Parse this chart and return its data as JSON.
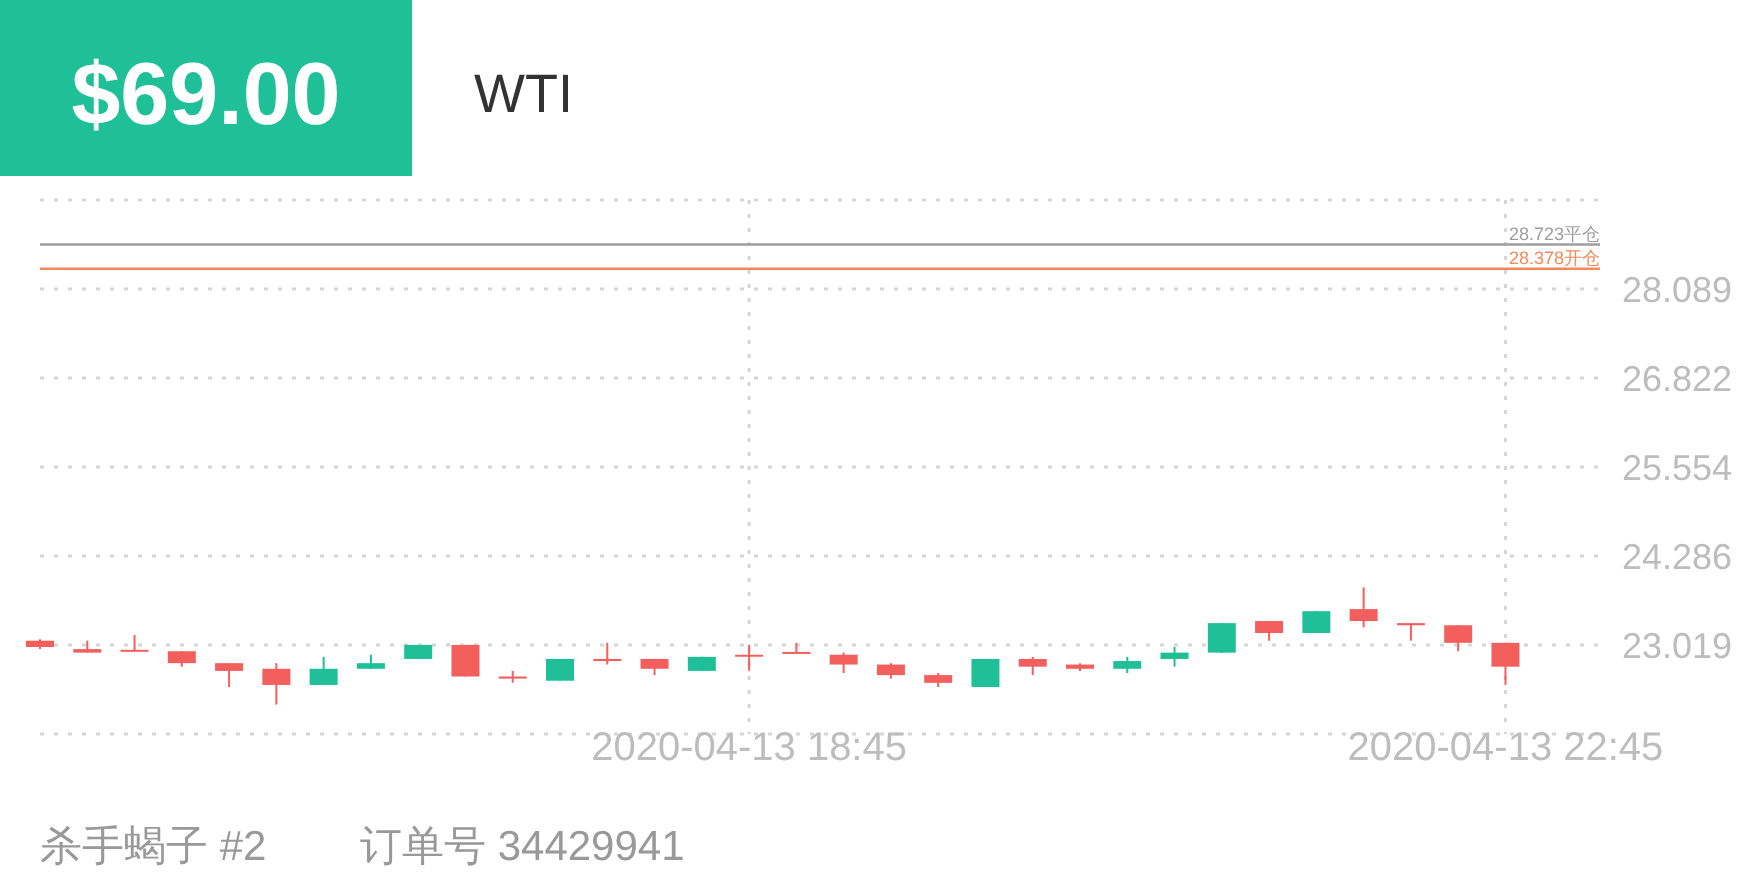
{
  "chart_data": {
    "type": "candlestick",
    "title": "$69.00",
    "subtitle": "WTI",
    "x": [
      "2020-04-13T15:00",
      "2020-04-13T15:15",
      "2020-04-13T15:30",
      "2020-04-13T15:45",
      "2020-04-13T16:00",
      "2020-04-13T16:15",
      "2020-04-13T16:30",
      "2020-04-13T16:45",
      "2020-04-13T17:00",
      "2020-04-13T17:15",
      "2020-04-13T17:30",
      "2020-04-13T17:45",
      "2020-04-13T18:00",
      "2020-04-13T18:15",
      "2020-04-13T18:30",
      "2020-04-13T18:45",
      "2020-04-13T19:00",
      "2020-04-13T19:15",
      "2020-04-13T19:30",
      "2020-04-13T19:45",
      "2020-04-13T20:00",
      "2020-04-13T20:15",
      "2020-04-13T20:30",
      "2020-04-13T20:45",
      "2020-04-13T21:00",
      "2020-04-13T21:15",
      "2020-04-13T21:30",
      "2020-04-13T21:45",
      "2020-04-13T22:00",
      "2020-04-13T22:15",
      "2020-04-13T22:30",
      "2020-04-13T22:45"
    ],
    "ohlc": [
      [
        23.08,
        23.1,
        22.96,
        22.99
      ],
      [
        22.96,
        23.08,
        22.91,
        22.91
      ],
      [
        22.95,
        23.16,
        22.93,
        22.93
      ],
      [
        22.93,
        22.93,
        22.71,
        22.76
      ],
      [
        22.76,
        22.76,
        22.42,
        22.65
      ],
      [
        22.68,
        22.76,
        22.17,
        22.45
      ],
      [
        22.45,
        22.85,
        22.45,
        22.68
      ],
      [
        22.68,
        22.88,
        22.68,
        22.76
      ],
      [
        22.82,
        23.02,
        22.82,
        23.02
      ],
      [
        23.02,
        23.02,
        22.57,
        22.57
      ],
      [
        22.57,
        22.65,
        22.48,
        22.54
      ],
      [
        22.51,
        22.82,
        22.51,
        22.82
      ],
      [
        22.82,
        23.05,
        22.74,
        22.79
      ],
      [
        22.82,
        22.82,
        22.59,
        22.68
      ],
      [
        22.65,
        22.85,
        22.65,
        22.85
      ],
      [
        22.88,
        23.02,
        22.65,
        22.86
      ],
      [
        22.92,
        23.05,
        22.91,
        22.91
      ],
      [
        22.88,
        22.91,
        22.62,
        22.74
      ],
      [
        22.74,
        22.76,
        22.54,
        22.59
      ],
      [
        22.59,
        22.62,
        22.42,
        22.48
      ],
      [
        22.42,
        22.82,
        22.42,
        22.82
      ],
      [
        22.82,
        22.85,
        22.59,
        22.71
      ],
      [
        22.74,
        22.76,
        22.65,
        22.68
      ],
      [
        22.68,
        22.85,
        22.62,
        22.79
      ],
      [
        22.82,
        22.99,
        22.71,
        22.91
      ],
      [
        22.91,
        23.33,
        22.91,
        23.33
      ],
      [
        23.36,
        23.36,
        23.08,
        23.19
      ],
      [
        23.19,
        23.5,
        23.19,
        23.5
      ],
      [
        23.53,
        23.84,
        23.27,
        23.36
      ],
      [
        23.33,
        23.33,
        23.08,
        23.3
      ],
      [
        23.3,
        23.3,
        22.93,
        23.05
      ],
      [
        23.05,
        23.05,
        22.45,
        22.71
      ]
    ],
    "colors": [
      "#f25f5c",
      "#f25f5c",
      "#f25f5c",
      "#f25f5c",
      "#f25f5c",
      "#f25f5c",
      "#1fbf97",
      "#1fbf97",
      "#1fbf97",
      "#f25f5c",
      "#f25f5c",
      "#1fbf97",
      "#f25f5c",
      "#f25f5c",
      "#1fbf97",
      "#f25f5c",
      "#f25f5c",
      "#f25f5c",
      "#f25f5c",
      "#f25f5c",
      "#1fbf97",
      "#f25f5c",
      "#f25f5c",
      "#1fbf97",
      "#1fbf97",
      "#1fbf97",
      "#f25f5c",
      "#1fbf97",
      "#f25f5c",
      "#f25f5c",
      "#f25f5c",
      "#f25f5c"
    ],
    "xlim": [
      "2020-04-13T15:00",
      "2020-04-13T23:15"
    ],
    "xticks": [
      {
        "value": "2020-04-13T18:45",
        "label": "2020-04-13 18:45"
      },
      {
        "value": "2020-04-13T22:45",
        "label": "2020-04-13 22:45"
      }
    ],
    "ylim": [
      21.751,
      29.357
    ],
    "yticks": [
      {
        "value": 21.751,
        "label": null
      },
      23.019,
      24.286,
      25.554,
      26.822,
      28.089,
      {
        "value": 29.357,
        "label": null
      }
    ],
    "grid": true,
    "ref_lines": [
      {
        "axis": "y",
        "value": 28.723,
        "label": "28.723平仓",
        "color": "#9e9e9e"
      },
      {
        "axis": "y",
        "value": 28.378,
        "label": "28.378开仓",
        "color": "#f7885a"
      }
    ],
    "annotations": [
      "杀手蝎子 #2",
      "订单号 34429941"
    ]
  }
}
